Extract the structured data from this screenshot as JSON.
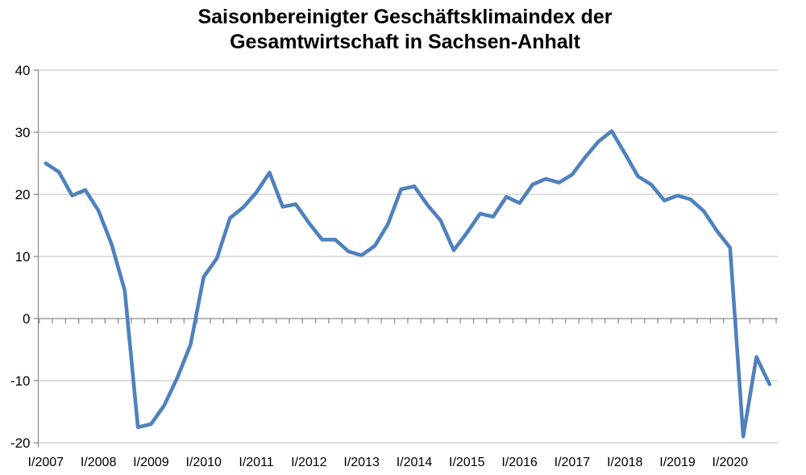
{
  "page": {
    "background": "#FFFFFF"
  },
  "chart_data": {
    "type": "line",
    "title_line1": "Saisonbereinigter Geschäftsklimaindex der",
    "title_line2": "Gesamtwirtschaft in Sachsen-Anhalt",
    "legend": "none",
    "grid": "horizontal",
    "xlabel": "",
    "ylabel": "",
    "ylim": [
      -20,
      40
    ],
    "y_ticks": [
      40,
      30,
      20,
      10,
      0,
      -10,
      -20
    ],
    "x_tick_labels": [
      "I/2007",
      "I/2008",
      "I/2009",
      "I/2010",
      "I/2011",
      "I/2012",
      "I/2013",
      "I/2014",
      "I/2015",
      "I/2016",
      "I/2017",
      "I/2018",
      "I/2019",
      "I/2020"
    ],
    "categories": [
      "I/2007",
      "II/2007",
      "III/2007",
      "IV/2007",
      "I/2008",
      "II/2008",
      "III/2008",
      "IV/2008",
      "I/2009",
      "II/2009",
      "III/2009",
      "IV/2009",
      "I/2010",
      "II/2010",
      "III/2010",
      "IV/2010",
      "I/2011",
      "II/2011",
      "III/2011",
      "IV/2011",
      "I/2012",
      "II/2012",
      "III/2012",
      "IV/2012",
      "I/2013",
      "II/2013",
      "III/2013",
      "IV/2013",
      "I/2014",
      "II/2014",
      "III/2014",
      "IV/2014",
      "I/2015",
      "II/2015",
      "III/2015",
      "IV/2015",
      "I/2016",
      "II/2016",
      "III/2016",
      "IV/2016",
      "I/2017",
      "II/2017",
      "III/2017",
      "IV/2017",
      "I/2018",
      "II/2018",
      "III/2018",
      "IV/2018",
      "I/2019",
      "II/2019",
      "III/2019",
      "IV/2019",
      "I/2020",
      "II/2020",
      "III/2020",
      "IV/2020"
    ],
    "series": [
      {
        "name": "Saisonbereinigter Geschäftsklimaindex Gesamtwirtschaft Sachsen-Anhalt",
        "values": [
          25.0,
          23.6,
          19.8,
          20.7,
          17.4,
          12.0,
          4.5,
          -17.5,
          -17.0,
          -14.0,
          -9.5,
          -4.2,
          6.7,
          9.7,
          16.2,
          17.9,
          20.3,
          23.5,
          18.0,
          18.4,
          15.4,
          12.7,
          12.7,
          10.8,
          10.2,
          11.7,
          15.2,
          20.8,
          21.3,
          18.3,
          15.8,
          11.0,
          13.8,
          16.9,
          16.4,
          19.6,
          18.6,
          21.6,
          22.5,
          21.9,
          23.2,
          26.0,
          28.5,
          30.2,
          26.6,
          22.9,
          21.6,
          19.0,
          19.8,
          19.2,
          17.3,
          14.1,
          11.4,
          -19.0,
          -6.2,
          -10.6
        ]
      }
    ],
    "line_color": "#4F81BD",
    "grid_color": "#C9C9C9",
    "axis_color": "#8C8C8C",
    "text_color": "#000000"
  }
}
